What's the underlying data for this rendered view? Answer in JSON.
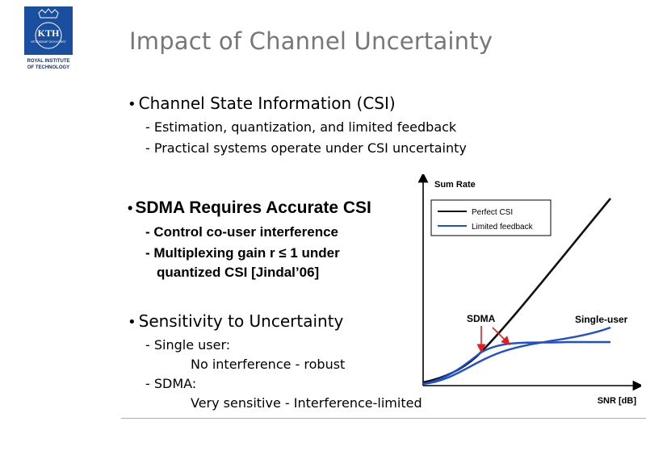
{
  "logo": {
    "brand_text": "KTH",
    "motto": "VETENSKAP OCH KONST",
    "caption_line1": "ROYAL INSTITUTE",
    "caption_line2": "OF TECHNOLOGY",
    "color": "#1a4fa0"
  },
  "slide": {
    "title": "Impact of Channel Uncertainty",
    "bullets": [
      {
        "text": "Channel State Information (CSI)",
        "subs": [
          "- Estimation, quantization, and limited feedback",
          "- Practical systems operate under CSI uncertainty"
        ]
      },
      {
        "text": "SDMA Requires Accurate CSI",
        "subs": [
          "- Control co-user interference",
          "- Multiplexing gain r ≤ 1 under",
          "quantized CSI [Jindal’06]"
        ]
      },
      {
        "text": "Sensitivity to Uncertainty",
        "subs": [
          "- Single user:",
          "No interference - robust",
          "- SDMA:",
          "Very sensitive  - Interference-limited"
        ]
      }
    ]
  },
  "chart_data": {
    "type": "line",
    "ylabel": "Sum Rate",
    "xlabel": "SNR [dB]",
    "legend": [
      "Perfect CSI",
      "Limited feedback"
    ],
    "legend_position": "top-left",
    "annotations": [
      "SDMA",
      "Single-user"
    ],
    "series": [
      {
        "name": "Perfect CSI",
        "curve": "SDMA",
        "color": "#111111"
      },
      {
        "name": "Limited feedback",
        "curve": "SDMA",
        "color": "#1f4fd0"
      },
      {
        "name": "Limited feedback",
        "curve": "Single-user",
        "color": "#1f4fd0"
      }
    ],
    "arrow_color": "#e02020"
  }
}
